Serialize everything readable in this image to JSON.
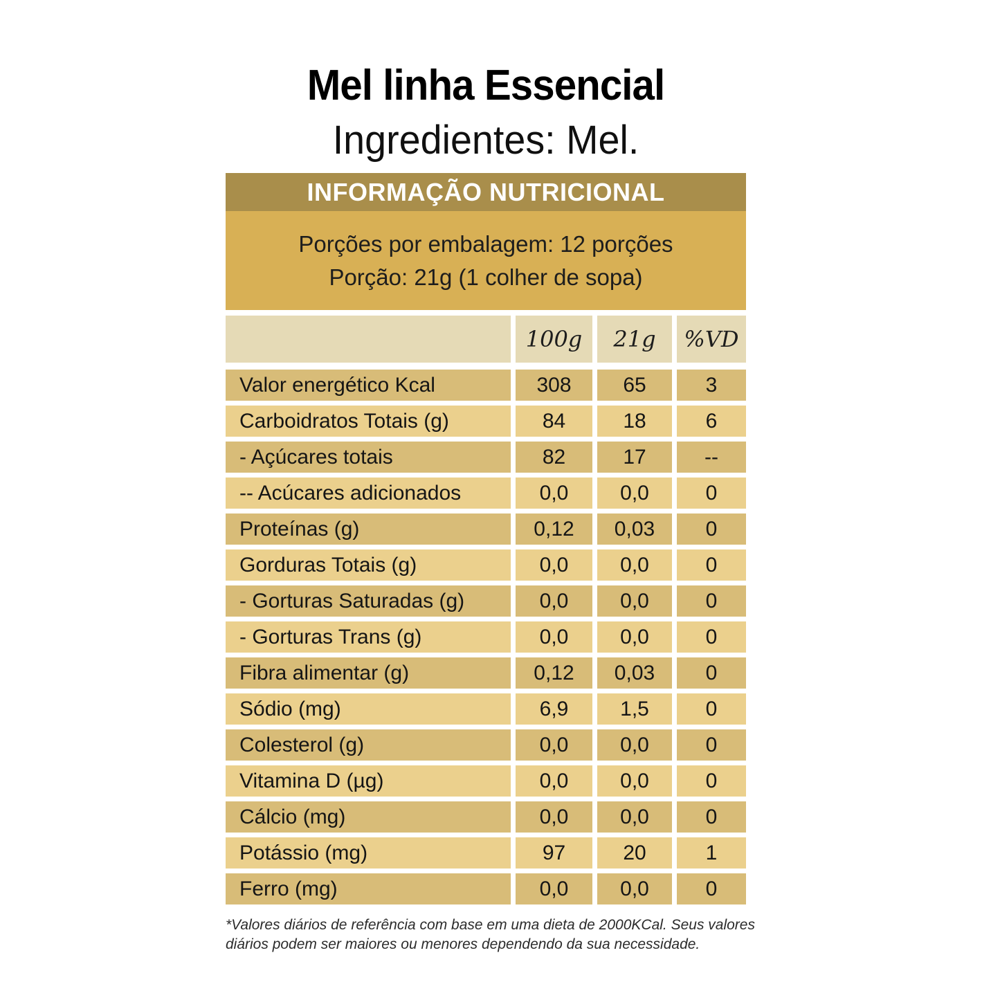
{
  "header": {
    "title": "Mel linha Essencial",
    "ingredients": "Ingredientes: Mel."
  },
  "label": {
    "header": "INFORMAÇÃO NUTRICIONAL",
    "servings_per_package": "Porções por embalagem: 12 porções",
    "serving_size": "Porção: 21g (1 colher de sopa)"
  },
  "table": {
    "columns": [
      "100g",
      "21g",
      "%VD"
    ],
    "rows": [
      {
        "label": "Valor energético Kcal",
        "per100g": "308",
        "per21g": "65",
        "vd": "3"
      },
      {
        "label": "Carboidratos Totais (g)",
        "per100g": "84",
        "per21g": "18",
        "vd": "6"
      },
      {
        "label": "- Açúcares totais",
        "per100g": "82",
        "per21g": "17",
        "vd": "--"
      },
      {
        "label": "-- Acúcares adicionados",
        "per100g": "0,0",
        "per21g": "0,0",
        "vd": "0"
      },
      {
        "label": "Proteínas (g)",
        "per100g": "0,12",
        "per21g": "0,03",
        "vd": "0"
      },
      {
        "label": "Gorduras Totais (g)",
        "per100g": "0,0",
        "per21g": "0,0",
        "vd": "0"
      },
      {
        "label": "- Gorturas Saturadas (g)",
        "per100g": "0,0",
        "per21g": "0,0",
        "vd": "0"
      },
      {
        "label": "- Gorturas Trans (g)",
        "per100g": "0,0",
        "per21g": "0,0",
        "vd": "0"
      },
      {
        "label": "Fibra alimentar (g)",
        "per100g": "0,12",
        "per21g": "0,03",
        "vd": "0"
      },
      {
        "label": "Sódio (mg)",
        "per100g": "6,9",
        "per21g": "1,5",
        "vd": "0"
      },
      {
        "label": "Colesterol (g)",
        "per100g": "0,0",
        "per21g": "0,0",
        "vd": "0"
      },
      {
        "label": "Vitamina D (µg)",
        "per100g": "0,0",
        "per21g": "0,0",
        "vd": "0"
      },
      {
        "label": "Cálcio (mg)",
        "per100g": "0,0",
        "per21g": "0,0",
        "vd": "0"
      },
      {
        "label": "Potássio (mg)",
        "per100g": "97",
        "per21g": "20",
        "vd": "1"
      },
      {
        "label": "Ferro (mg)",
        "per100g": "0,0",
        "per21g": "0,0",
        "vd": "0"
      }
    ]
  },
  "footnote": {
    "line1": "*Valores diários de referência com base em uma dieta de 2000KCal. Seus valores",
    "line2": "diários podem ser maiores ou menores dependendo da sua necessidade."
  },
  "colors": {
    "header_bar_bg": "#A98E4B",
    "header_text": "#FFFFFF",
    "servings_bg": "#D8B055",
    "column_header_bg": "#E5DAB6",
    "row_dark_bg": "#D8BC78",
    "row_light_bg": "#EBD08D",
    "body_text": "#151515"
  }
}
